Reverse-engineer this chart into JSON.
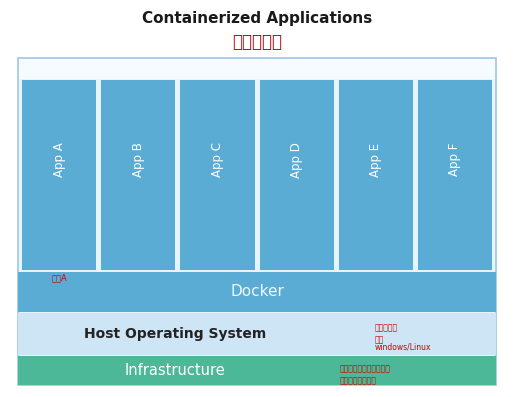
{
  "title_en": "Containerized Applications",
  "title_cn": "应用容器化",
  "title_en_color": "#1a1a1a",
  "title_cn_color": "#cc0000",
  "apps": [
    "App A",
    "App B",
    "App C",
    "App D",
    "App E",
    "App F"
  ],
  "app_annotation": "应用A",
  "app_color": "#5aacd5",
  "app_text_color": "#ffffff",
  "app_annotation_color": "#cc0000",
  "outer_border_color": "#a0c8e0",
  "outer_box_bg": "#e8f4fb",
  "top_strip_color": "#f5fbff",
  "docker_label": "Docker",
  "docker_color": "#5aacd5",
  "docker_text_color": "#f0f8ff",
  "hos_label": "Host Operating System",
  "hos_annotation_line1": "主操作系统",
  "hos_annotation_line2": "如：",
  "hos_annotation_line3": "windows/Linux",
  "hos_color": "#cde5f5",
  "hos_text_color": "#222222",
  "hos_annotation_color": "#cc0000",
  "infra_label": "Infrastructure",
  "infra_annotation_line1": "基础设施（个人电脑、数",
  "infra_annotation_line2": "据中心的服务器）",
  "infra_color": "#4db898",
  "infra_text_color": "#ffffff",
  "infra_annotation_color": "#cc0000",
  "bg_color": "#ffffff"
}
